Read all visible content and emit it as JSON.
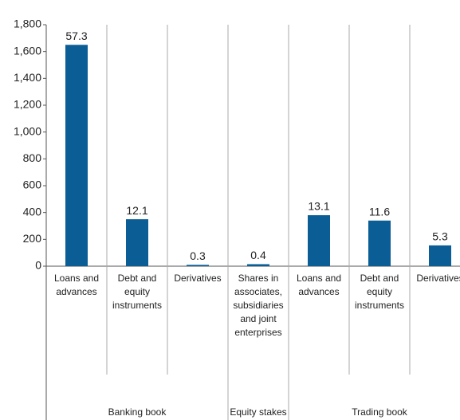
{
  "chart_data": {
    "type": "bar",
    "categories": [
      "Loans and advances",
      "Debt and equity instruments",
      "Derivatives",
      "Shares in associates, subsidiaries and joint enterprises",
      "Loans and advances",
      "Debt and equity instruments",
      "Derivatives"
    ],
    "values": [
      1650,
      350,
      10,
      15,
      380,
      340,
      155
    ],
    "value_labels": [
      "57.3",
      "12.1",
      "0.3",
      "0.4",
      "13.1",
      "11.6",
      "5.3"
    ],
    "x_groups": [
      "Banking book",
      "Equity stakes",
      "Trading book"
    ],
    "color": "#0b5e95",
    "ylim": [
      0,
      1800
    ],
    "yticks": [
      0,
      200,
      400,
      600,
      800,
      {
        "value": 1000,
        "label": "1,000"
      },
      {
        "value": 1200,
        "label": "1,200"
      },
      {
        "value": 1400,
        "label": "1,400"
      },
      {
        "value": 1600,
        "label": "1,600"
      },
      {
        "value": 1800,
        "label": "1,800"
      }
    ]
  }
}
